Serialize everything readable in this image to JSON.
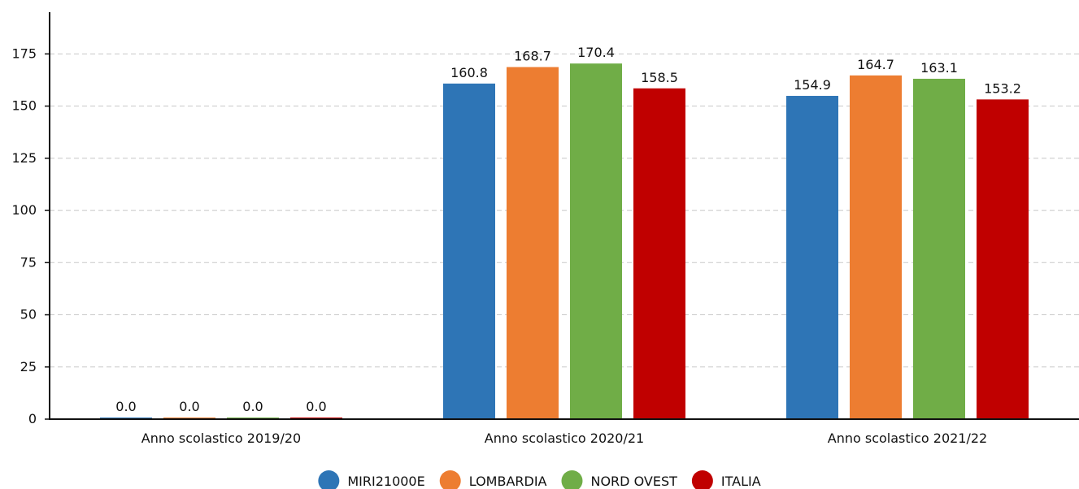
{
  "chart_data": {
    "type": "bar",
    "title": "",
    "xlabel": "",
    "ylabel": "",
    "categories": [
      "Anno scolastico 2019/20",
      "Anno scolastico 2020/21",
      "Anno scolastico 2021/22"
    ],
    "series": [
      {
        "name": "MIRI21000E",
        "color": "#2e75b6",
        "values": [
          0.0,
          160.8,
          154.9
        ],
        "labels": [
          "0.0",
          "160.8",
          "154.9"
        ]
      },
      {
        "name": "LOMBARDIA",
        "color": "#ed7d31",
        "values": [
          0.0,
          168.7,
          164.7
        ],
        "labels": [
          "0.0",
          "168.7",
          "164.7"
        ]
      },
      {
        "name": "NORD OVEST",
        "color": "#70ad47",
        "values": [
          0.0,
          170.4,
          163.1
        ],
        "labels": [
          "0.0",
          "170.4",
          "163.1"
        ]
      },
      {
        "name": "ITALIA",
        "color": "#c00000",
        "values": [
          0.0,
          158.5,
          153.2
        ],
        "labels": [
          "0.0",
          "158.5",
          "153.2"
        ]
      }
    ],
    "ylim": [
      0,
      195
    ],
    "yticks": [
      0,
      25,
      50,
      75,
      100,
      125,
      150,
      175
    ],
    "grid": true,
    "legend_position": "bottom-center"
  }
}
